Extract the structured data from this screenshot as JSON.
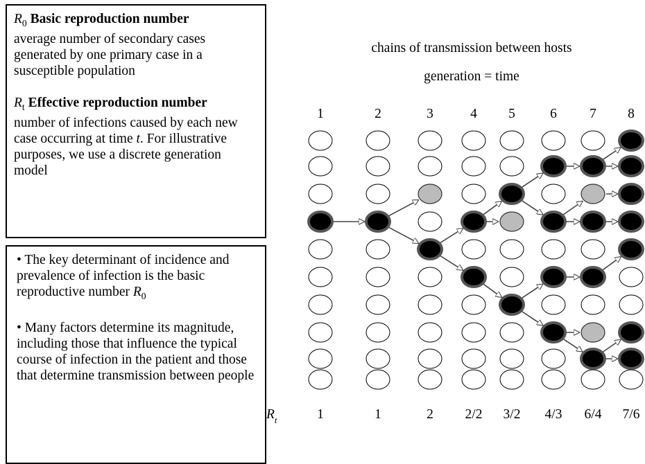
{
  "definitions": [
    {
      "symbol": "R",
      "subscript": "0",
      "term": "Basic reproduction number",
      "description": [
        "average number of secondary cases generated by one primary case in a susceptible population"
      ]
    },
    {
      "symbol": "R",
      "subscript": "t",
      "term": "Effective reproduction number",
      "description": [
        "number of infections caused by each new case occurring at time ",
        "t",
        ". For illustrative purposes, we use a discrete generation model"
      ]
    }
  ],
  "bullets": [
    {
      "text": "The key determinant of incidence and prevalence of infection is the basic reproductive number ",
      "symbol": "R",
      "subscript": "0"
    },
    {
      "text": "Many factors determine its magnitude, including those that influence the typical course of infection in the patient and those that determine transmission between people"
    }
  ],
  "diagram": {
    "title": "chains of transmission between hosts",
    "subtitle": "generation = time",
    "generations": [
      "1",
      "2",
      "3",
      "4",
      "5",
      "6",
      "7",
      "8"
    ],
    "rt_symbol": "R",
    "rt_subscript": "t",
    "rt_values": [
      "1",
      "1",
      "2",
      "2/2",
      "3/2",
      "4/3",
      "6/4",
      "7/6"
    ]
  }
}
